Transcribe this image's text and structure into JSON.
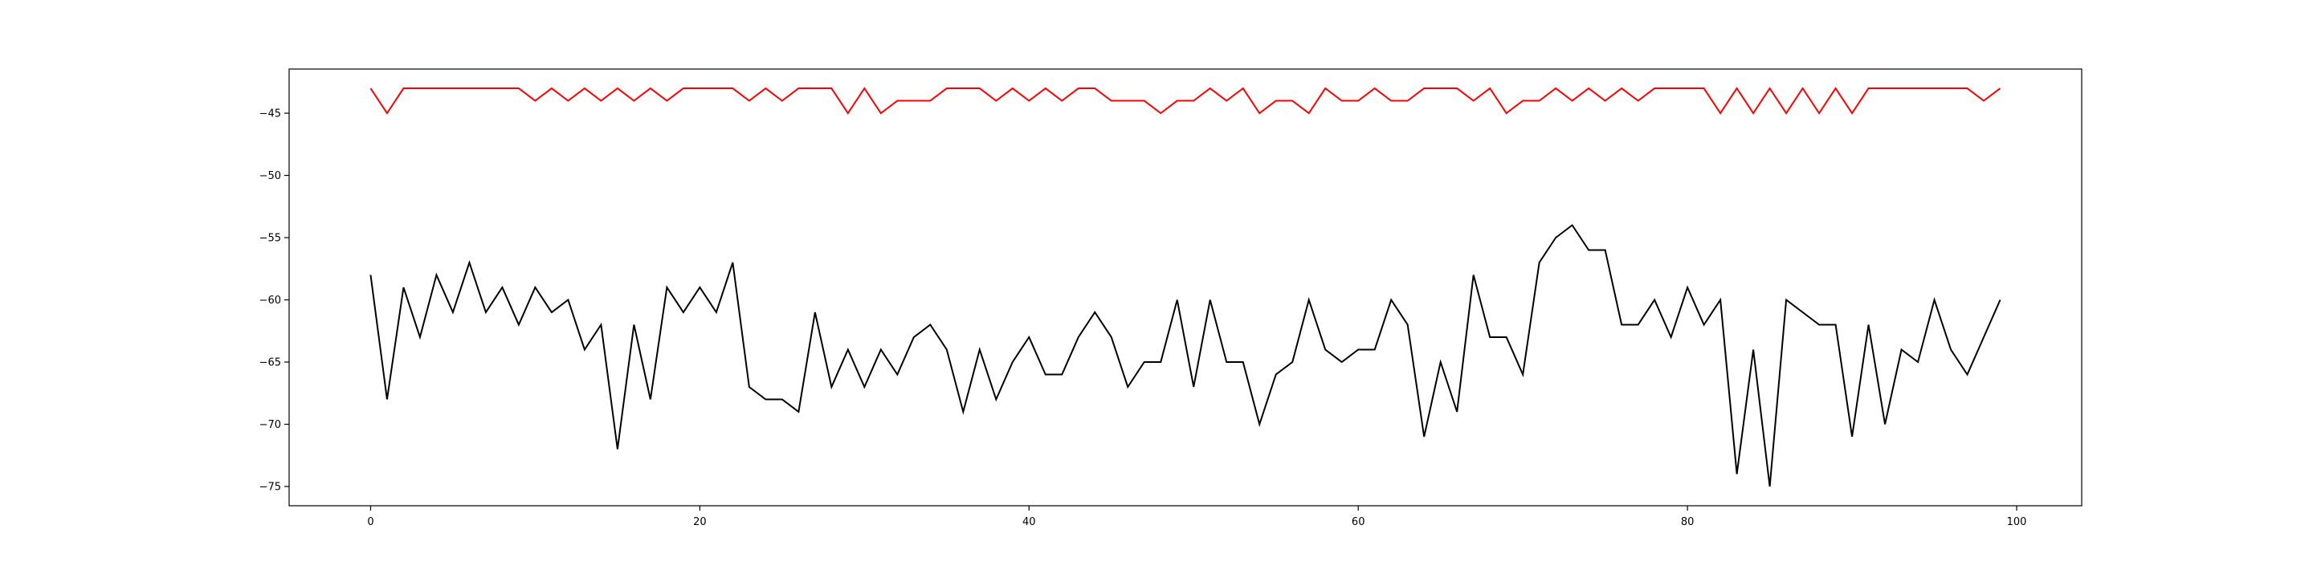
{
  "chart_data": {
    "type": "line",
    "title": "",
    "xlabel": "",
    "ylabel": "",
    "xlim": [
      -4.95,
      103.95
    ],
    "ylim": [
      -76.55,
      -41.45
    ],
    "grid": false,
    "x_ticks": [
      0,
      20,
      40,
      60,
      80,
      100
    ],
    "y_ticks": [
      -75,
      -70,
      -65,
      -60,
      -55,
      -50,
      -45
    ],
    "x_tick_labels": [
      "0",
      "20",
      "40",
      "60",
      "80",
      "100"
    ],
    "y_tick_labels": [
      "−75",
      "−70",
      "−65",
      "−60",
      "−55",
      "−50",
      "−45"
    ],
    "series": [
      {
        "color": "#ff0000",
        "values": [
          -43,
          -45,
          -43,
          -43,
          -43,
          -43,
          -43,
          -43,
          -43,
          -43,
          -44,
          -43,
          -44,
          -43,
          -44,
          -43,
          -44,
          -43,
          -44,
          -43,
          -43,
          -43,
          -43,
          -44,
          -43,
          -44,
          -43,
          -43,
          -43,
          -45,
          -43,
          -45,
          -44,
          -44,
          -44,
          -43,
          -43,
          -43,
          -44,
          -43,
          -44,
          -43,
          -44,
          -43,
          -43,
          -44,
          -44,
          -44,
          -45,
          -44,
          -44,
          -43,
          -44,
          -43,
          -45,
          -44,
          -44,
          -45,
          -43,
          -44,
          -44,
          -43,
          -44,
          -44,
          -43,
          -43,
          -43,
          -44,
          -43,
          -45,
          -44,
          -44,
          -43,
          -44,
          -43,
          -44,
          -43,
          -44,
          -43,
          -43,
          -43,
          -43,
          -45,
          -43,
          -45,
          -43,
          -45,
          -43,
          -45,
          -43,
          -45,
          -43,
          -43,
          -43,
          -43,
          -43,
          -43,
          -43,
          -44,
          -43
        ]
      },
      {
        "color": "#000000",
        "values": [
          -58,
          -68,
          -59,
          -63,
          -58,
          -61,
          -57,
          -61,
          -59,
          -62,
          -59,
          -61,
          -60,
          -64,
          -62,
          -72,
          -62,
          -68,
          -59,
          -61,
          -59,
          -61,
          -57,
          -67,
          -68,
          -68,
          -69,
          -61,
          -67,
          -64,
          -67,
          -64,
          -66,
          -63,
          -62,
          -64,
          -69,
          -64,
          -68,
          -65,
          -63,
          -66,
          -66,
          -63,
          -61,
          -63,
          -67,
          -65,
          -65,
          -60,
          -67,
          -60,
          -65,
          -65,
          -70,
          -66,
          -65,
          -60,
          -64,
          -65,
          -64,
          -64,
          -60,
          -62,
          -71,
          -65,
          -69,
          -58,
          -63,
          -63,
          -66,
          -57,
          -55,
          -54,
          -56,
          -56,
          -62,
          -62,
          -60,
          -63,
          -59,
          -62,
          -60,
          -74,
          -64,
          -75,
          -60,
          -61,
          -62,
          -62,
          -71,
          -62,
          -70,
          -64,
          -65,
          -60,
          -64,
          -66,
          -63,
          -60
        ]
      }
    ]
  }
}
